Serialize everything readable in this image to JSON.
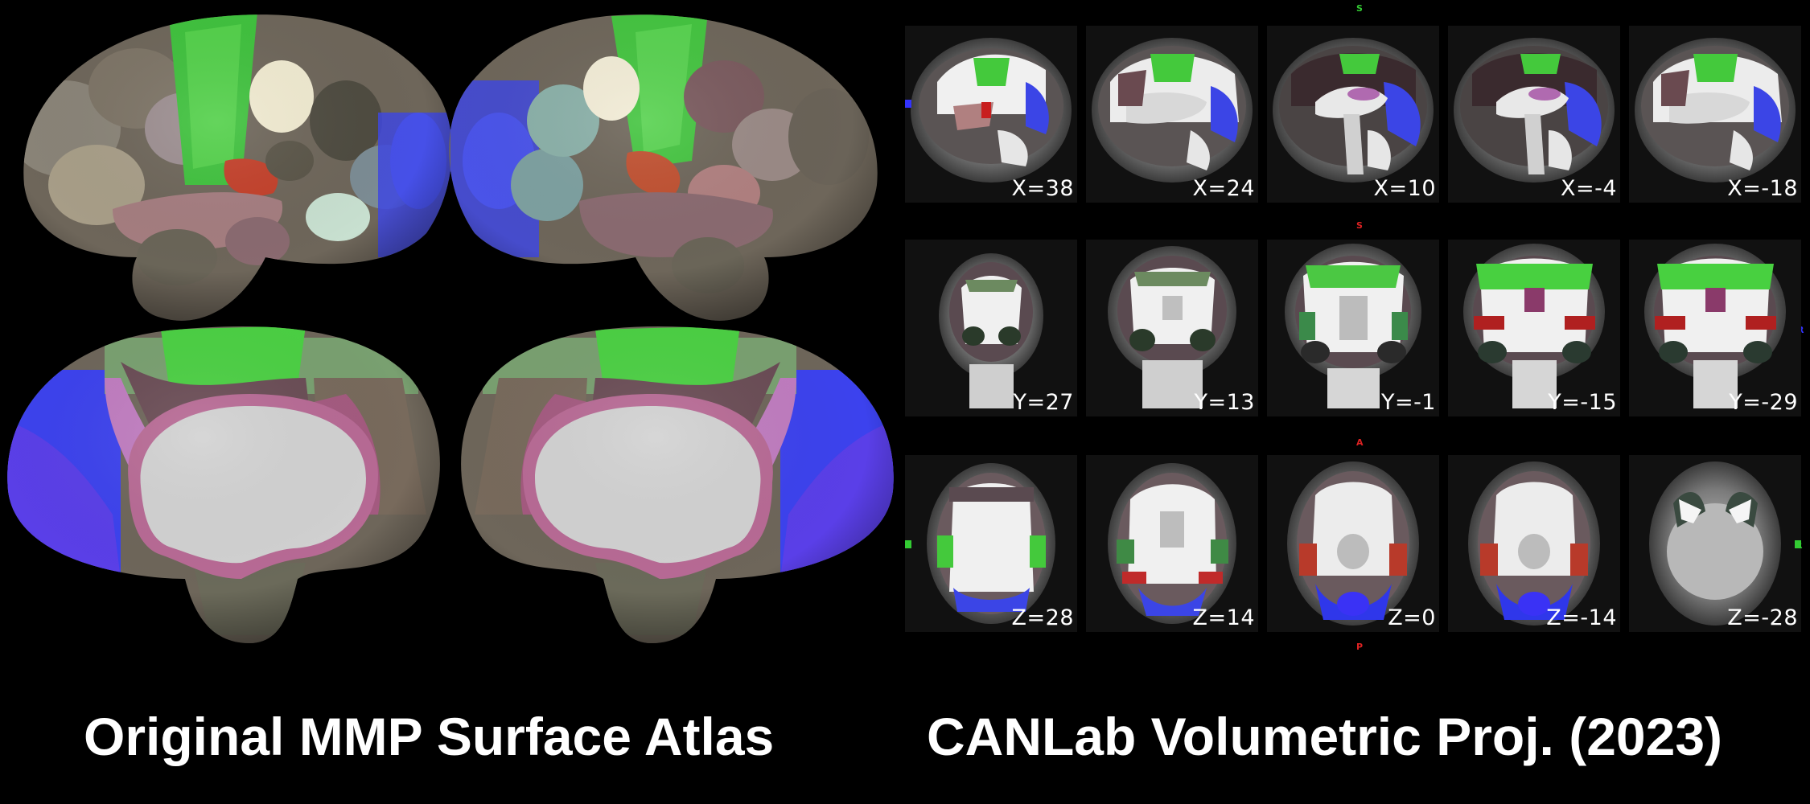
{
  "captions": {
    "left": "Original MMP Surface Atlas",
    "right": "CANLab Volumetric Proj. (2023)"
  },
  "sagittal_labels": [
    "X=38",
    "X=24",
    "X=10",
    "X=-4",
    "X=-18"
  ],
  "coronal_labels": [
    "Y=27",
    "Y=13",
    "Y=-1",
    "Y=-15",
    "Y=-29"
  ],
  "axial_labels": [
    "Z=28",
    "Z=14",
    "Z=0",
    "Z=-14",
    "Z=-28"
  ],
  "orientation_markers": {
    "sagittal_top": "S",
    "coronal_top": "S",
    "coronal_left": "L",
    "coronal_right": "R",
    "axial_top": "A",
    "axial_bottom": "P",
    "axial_left": "L",
    "axial_right": "R"
  },
  "colors": {
    "background": "#000000",
    "motor_green": "#43d43a",
    "visual_blue": "#3d44e8",
    "auditory_red": "#c02a1a",
    "cingulate_pink": "#b0607e",
    "medial_wall": "#d0d0d0"
  }
}
